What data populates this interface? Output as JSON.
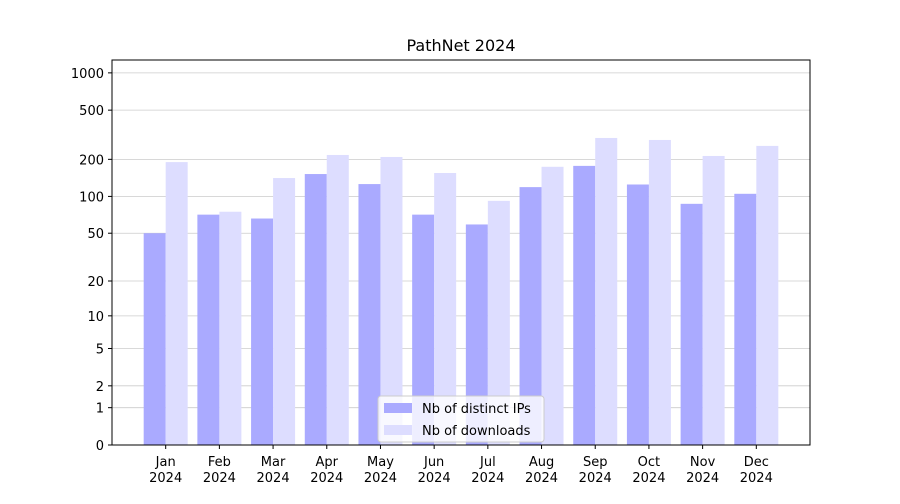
{
  "chart_data": {
    "type": "bar",
    "title": "PathNet 2024",
    "categories": [
      "Jan\n2024",
      "Feb\n2024",
      "Mar\n2024",
      "Apr\n2024",
      "May\n2024",
      "Jun\n2024",
      "Jul\n2024",
      "Aug\n2024",
      "Sep\n2024",
      "Oct\n2024",
      "Nov\n2024",
      "Dec\n2024"
    ],
    "series": [
      {
        "name": "Nb of distinct IPs",
        "color": "#aaaaff",
        "values": [
          50,
          71,
          66,
          152,
          126,
          71,
          59,
          119,
          177,
          125,
          87,
          105
        ]
      },
      {
        "name": "Nb of downloads",
        "color": "#ddddff",
        "values": [
          190,
          75,
          141,
          217,
          209,
          155,
          92,
          174,
          298,
          287,
          213,
          257
        ]
      }
    ],
    "yscale": "log1p",
    "ylim": [
      0,
      1270
    ],
    "yticks": [
      0,
      1,
      2,
      5,
      10,
      20,
      50,
      100,
      200,
      500,
      1000
    ],
    "grid": true,
    "legend": "lower center"
  }
}
